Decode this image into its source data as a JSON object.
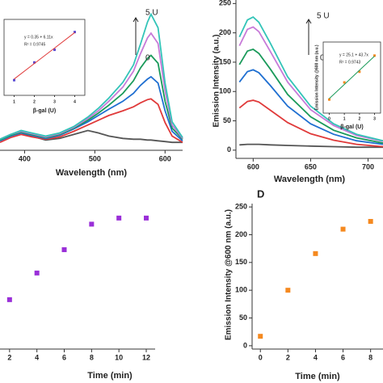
{
  "chart_data": [
    {
      "type": "line",
      "xlabel": "Wavelength (nm)",
      "xlim": [
        365,
        625
      ],
      "xticks": [
        400,
        500,
        600
      ],
      "ylim": [
        0,
        190
      ],
      "x": [
        365,
        380,
        395,
        410,
        430,
        450,
        470,
        490,
        505,
        520,
        540,
        555,
        565,
        575,
        580,
        590,
        600,
        610,
        625
      ],
      "series": [
        {
          "color": "#555555",
          "values": [
            14,
            18,
            22,
            18,
            13,
            15,
            20,
            25,
            22,
            18,
            15,
            14,
            14,
            13,
            13,
            12,
            11,
            10,
            10
          ]
        },
        {
          "color": "#e03a3a",
          "values": [
            10,
            16,
            20,
            17,
            14,
            17,
            24,
            32,
            38,
            44,
            50,
            55,
            60,
            64,
            65,
            58,
            35,
            18,
            10
          ]
        },
        {
          "color": "#1f6fd1",
          "values": [
            12,
            18,
            22,
            19,
            15,
            19,
            27,
            36,
            44,
            52,
            62,
            72,
            82,
            90,
            93,
            85,
            50,
            24,
            12
          ]
        },
        {
          "color": "#1a9a5a",
          "values": [
            13,
            19,
            23,
            20,
            16,
            20,
            28,
            38,
            47,
            57,
            72,
            88,
            104,
            116,
            120,
            110,
            62,
            28,
            14
          ]
        },
        {
          "color": "#c77ad8",
          "values": [
            14,
            20,
            24,
            21,
            17,
            21,
            29,
            40,
            50,
            62,
            80,
            100,
            122,
            142,
            148,
            135,
            75,
            32,
            15
          ]
        },
        {
          "color": "#33c4b8",
          "values": [
            14,
            20,
            25,
            22,
            18,
            22,
            30,
            42,
            53,
            66,
            86,
            108,
            134,
            162,
            172,
            155,
            85,
            36,
            16
          ]
        }
      ],
      "annotations": [
        "5 U",
        "0"
      ]
    },
    {
      "type": "scatter",
      "xlabel": "β-gal (U)",
      "xlim": [
        0.5,
        4.5
      ],
      "xticks": [
        1,
        2,
        3,
        4
      ],
      "ylim": [
        0,
        30
      ],
      "annotations": [
        "y = 0.35 + 6.11x",
        "R² = 0.9745"
      ],
      "x": [
        1,
        2,
        3,
        4
      ],
      "series": [
        {
          "color": "#5a4bd1",
          "values": [
            6,
            13,
            18,
            25
          ]
        },
        {
          "color": "#e03a3a",
          "mode": "line",
          "values": [
            6.46,
            12.57,
            18.68,
            24.79
          ]
        }
      ]
    },
    {
      "type": "line",
      "xlabel": "Wavelength (nm)",
      "ylabel": "Emission Intensity (a.u.)",
      "xlim": [
        585,
        713
      ],
      "xticks": [
        600,
        650,
        700
      ],
      "ylim": [
        -14,
        256
      ],
      "yticks": [
        0,
        50,
        100,
        150,
        200,
        250
      ],
      "x": [
        588,
        595,
        600,
        605,
        615,
        630,
        650,
        670,
        690,
        713
      ],
      "series": [
        {
          "color": "#555555",
          "values": [
            9,
            10,
            10,
            10,
            9,
            8,
            7,
            6,
            5,
            5
          ]
        },
        {
          "color": "#e03a3a",
          "values": [
            72,
            83,
            85,
            82,
            68,
            47,
            28,
            17,
            10,
            6
          ]
        },
        {
          "color": "#1f6fd1",
          "values": [
            116,
            134,
            137,
            132,
            110,
            75,
            45,
            27,
            16,
            10
          ]
        },
        {
          "color": "#1a9a5a",
          "values": [
            146,
            169,
            172,
            165,
            138,
            95,
            57,
            34,
            21,
            12
          ]
        },
        {
          "color": "#c77ad8",
          "values": [
            178,
            206,
            210,
            202,
            168,
            116,
            69,
            42,
            25,
            15
          ]
        },
        {
          "color": "#33c4b8",
          "values": [
            193,
            222,
            227,
            218,
            182,
            125,
            75,
            45,
            27,
            16
          ]
        }
      ],
      "annotations": [
        "5 U",
        "0"
      ]
    },
    {
      "type": "scatter",
      "xlabel": "β-gal (U)",
      "ylabel": "Emission Intensity @600 nm (a.u.)",
      "xlim": [
        -0.4,
        3.4
      ],
      "xticks": [
        0,
        1,
        2,
        3
      ],
      "ylim": [
        -20,
        200
      ],
      "annotations": [
        "y = 25.1 + 43.7x",
        "R² = 0.9743"
      ],
      "x": [
        0,
        1,
        2,
        3
      ],
      "series": [
        {
          "color": "#f5891f",
          "values": [
            22,
            75,
            108,
            158
          ]
        },
        {
          "color": "#1a9a5a",
          "mode": "line",
          "values": [
            25.1,
            68.8,
            112.5,
            156.2
          ]
        }
      ]
    },
    {
      "type": "scatter",
      "xlabel": "Time (min)",
      "xlim": [
        1.3,
        12.65
      ],
      "xticks": [
        2,
        4,
        6,
        8,
        10,
        12
      ],
      "ylim": [
        -6,
        256
      ],
      "x": [
        2,
        4,
        6,
        8,
        10,
        12
      ],
      "series": [
        {
          "color": "#9a2fd8",
          "values": [
            83,
            131,
            173,
            219,
            230,
            230
          ]
        }
      ]
    },
    {
      "type": "scatter",
      "label": "D",
      "xlabel": "Time (min)",
      "ylabel": "Emission Intensity @600 nm (a.u.)",
      "xlim": [
        -0.6,
        8.9
      ],
      "xticks": [
        0,
        2,
        4,
        6,
        8
      ],
      "ylim": [
        -6,
        256
      ],
      "yticks": [
        0,
        50,
        100,
        150,
        200,
        250
      ],
      "x": [
        0,
        2,
        4,
        6,
        8
      ],
      "series": [
        {
          "color": "#f5891f",
          "values": [
            17,
            100,
            166,
            210,
            224
          ]
        }
      ]
    }
  ]
}
